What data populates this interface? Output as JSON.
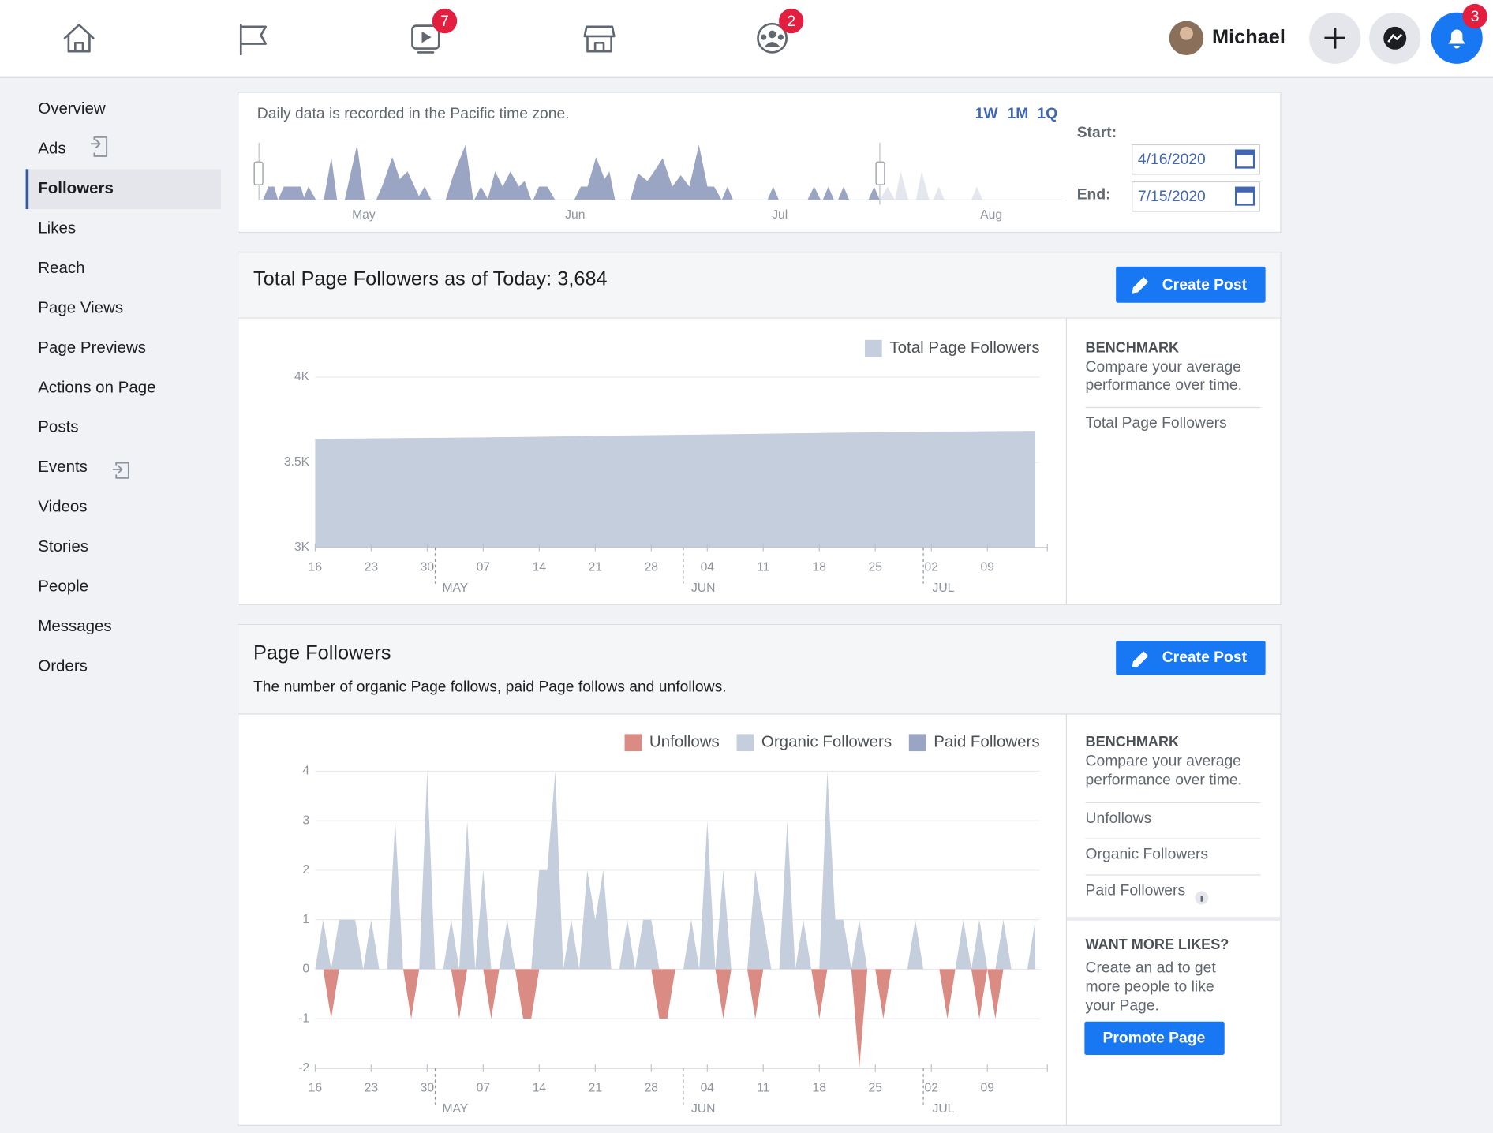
{
  "nav": {
    "user": "Michael",
    "badges": [
      7,
      2,
      3
    ]
  },
  "sidebar": {
    "items": [
      "Overview",
      "Ads",
      "Followers",
      "Likes",
      "Reach",
      "Page Views",
      "Page Previews",
      "Actions on Page",
      "Posts",
      "Events",
      "Videos",
      "Stories",
      "People",
      "Messages",
      "Orders"
    ],
    "selected": 2
  },
  "range": {
    "note": "Daily data is recorded in the Pacific time zone.",
    "periods": [
      "1W",
      "1M",
      "1Q"
    ],
    "start_label": "Start:",
    "start": "4/16/2020",
    "end_label": "End:",
    "end": "7/15/2020",
    "months": [
      "May",
      "Jun",
      "Jul",
      "Aug"
    ]
  },
  "total_panel": {
    "title": "Total Page Followers as of Today: 3,684",
    "button": "Create Post",
    "benchmark": {
      "heading": "BENCHMARK",
      "text": [
        "Compare your average",
        "performance over time."
      ],
      "metrics": [
        "Total Page Followers"
      ]
    },
    "chart": {
      "type": "area",
      "x": [
        0,
        7,
        14,
        21,
        28,
        35,
        42,
        49,
        56,
        63,
        70,
        77,
        84,
        90
      ],
      "series": [
        {
          "name": "Total Page Followers",
          "color": "#c5cedd",
          "values": [
            3637,
            3640,
            3643,
            3646,
            3650,
            3655,
            3659,
            3663,
            3667,
            3672,
            3676,
            3680,
            3682,
            3684
          ]
        }
      ],
      "xlim": [
        0,
        91.5
      ],
      "xticks": [
        {
          "value": 0,
          "label": "16"
        },
        {
          "value": 7,
          "label": "23"
        },
        {
          "value": 14,
          "label": "30"
        },
        {
          "value": 21,
          "label": "07"
        },
        {
          "value": 28,
          "label": "14"
        },
        {
          "value": 35,
          "label": "21"
        },
        {
          "value": 42,
          "label": "28"
        },
        {
          "value": 49,
          "label": "04"
        },
        {
          "value": 56,
          "label": "11"
        },
        {
          "value": 63,
          "label": "18"
        },
        {
          "value": 70,
          "label": "25"
        },
        {
          "value": 77,
          "label": "02"
        },
        {
          "value": 84,
          "label": "09"
        }
      ],
      "months": [
        {
          "value": 15,
          "label": "MAY"
        },
        {
          "value": 46,
          "label": "JUN"
        },
        {
          "value": 76,
          "label": "JUL"
        }
      ],
      "ylim": [
        3000,
        4000
      ],
      "yticks": [
        {
          "value": 3000,
          "label": "3K"
        },
        {
          "value": 3500,
          "label": "3.5K"
        },
        {
          "value": 4000,
          "label": "4K"
        }
      ],
      "grid": true
    }
  },
  "followers_panel": {
    "title": "Page Followers",
    "subtitle": "The number of organic Page follows, paid Page follows and unfollows.",
    "button": "Create Post",
    "benchmark": {
      "heading": "BENCHMARK",
      "text": [
        "Compare your average",
        "performance over time."
      ],
      "metrics": [
        "Unfollows",
        "Organic Followers",
        "Paid Followers"
      ]
    },
    "promo": {
      "heading": "WANT MORE LIKES?",
      "text": [
        "Create an ad to get",
        "more people to like",
        "your Page."
      ],
      "button": "Promote Page"
    },
    "chart": {
      "type": "area",
      "x": [
        0,
        1,
        2,
        3,
        4,
        5,
        6,
        7,
        8,
        9,
        10,
        11,
        12,
        13,
        14,
        15,
        16,
        17,
        18,
        19,
        20,
        21,
        22,
        23,
        24,
        25,
        26,
        27,
        28,
        29,
        30,
        31,
        32,
        33,
        34,
        35,
        36,
        37,
        38,
        39,
        40,
        41,
        42,
        43,
        44,
        45,
        46,
        47,
        48,
        49,
        50,
        51,
        52,
        53,
        54,
        55,
        56,
        57,
        58,
        59,
        60,
        61,
        62,
        63,
        64,
        65,
        66,
        67,
        68,
        69,
        70,
        71,
        72,
        73,
        74,
        75,
        76,
        77,
        78,
        79,
        80,
        81,
        82,
        83,
        84,
        85,
        86,
        87,
        88,
        89,
        90
      ],
      "series": [
        {
          "name": "Unfollows",
          "color": "#d98b84",
          "values": [
            0,
            0,
            -1,
            0,
            0,
            0,
            0,
            0,
            0,
            0,
            0,
            0,
            -1,
            0,
            0,
            0,
            0,
            0,
            -1,
            0,
            0,
            0,
            -1,
            0,
            0,
            0,
            -1,
            -1,
            0,
            0,
            0,
            0,
            0,
            0,
            0,
            0,
            0,
            0,
            0,
            0,
            0,
            0,
            0,
            -1,
            -1,
            0,
            0,
            0,
            0,
            0,
            0,
            -1,
            0,
            0,
            0,
            -1,
            0,
            0,
            0,
            0,
            0,
            0,
            0,
            -1,
            0,
            0,
            0,
            0,
            -2,
            0,
            0,
            -1,
            0,
            0,
            0,
            0,
            0,
            0,
            0,
            -1,
            0,
            0,
            0,
            -1,
            0,
            -1,
            0,
            0,
            0,
            0,
            0
          ]
        },
        {
          "name": "Organic Followers",
          "color": "#c5cedd",
          "values": [
            0,
            1,
            0,
            1,
            1,
            1,
            0,
            1,
            0,
            0,
            3,
            0,
            0,
            0,
            4,
            0,
            0,
            1,
            0,
            3,
            0,
            2,
            0,
            0,
            1,
            0,
            0,
            0,
            2,
            2,
            4,
            0,
            1,
            0,
            2,
            1,
            2,
            0,
            0,
            1,
            0,
            1,
            1,
            0,
            0,
            0,
            0,
            1,
            0,
            3,
            0,
            2,
            0,
            0,
            0,
            2,
            1,
            0,
            0,
            3,
            0,
            1,
            0,
            0,
            4,
            1,
            1,
            0,
            1,
            0,
            0,
            0,
            0,
            0,
            0,
            1,
            0,
            0,
            0,
            0,
            0,
            1,
            0,
            1,
            0,
            0,
            1,
            0,
            0,
            0,
            1
          ]
        },
        {
          "name": "Paid Followers",
          "color": "#9aa5c4",
          "values": [
            0,
            0,
            0,
            0,
            0,
            0,
            0,
            0,
            0,
            0,
            0,
            0,
            0,
            0,
            0,
            0,
            0,
            0,
            0,
            0,
            0,
            0,
            0,
            0,
            0,
            0,
            0,
            0,
            0,
            0,
            0,
            0,
            0,
            0,
            0,
            0,
            0,
            0,
            0,
            0,
            0,
            0,
            0,
            0,
            0,
            0,
            0,
            0,
            0,
            0,
            0,
            0,
            0,
            0,
            0,
            0,
            0,
            0,
            0,
            0,
            0,
            0,
            0,
            0,
            0,
            0,
            0,
            0,
            0,
            0,
            0,
            0,
            0,
            0,
            0,
            0,
            0,
            0,
            0,
            0,
            0,
            0,
            0,
            0,
            0,
            0,
            0,
            0,
            0,
            0,
            0
          ]
        }
      ],
      "xlim": [
        0,
        91.5
      ],
      "xticks": [
        {
          "value": 0,
          "label": "16"
        },
        {
          "value": 7,
          "label": "23"
        },
        {
          "value": 14,
          "label": "30"
        },
        {
          "value": 21,
          "label": "07"
        },
        {
          "value": 28,
          "label": "14"
        },
        {
          "value": 35,
          "label": "21"
        },
        {
          "value": 42,
          "label": "28"
        },
        {
          "value": 49,
          "label": "04"
        },
        {
          "value": 56,
          "label": "11"
        },
        {
          "value": 63,
          "label": "18"
        },
        {
          "value": 70,
          "label": "25"
        },
        {
          "value": 77,
          "label": "02"
        },
        {
          "value": 84,
          "label": "09"
        }
      ],
      "months": [
        {
          "value": 15,
          "label": "MAY"
        },
        {
          "value": 46,
          "label": "JUN"
        },
        {
          "value": 76,
          "label": "JUL"
        }
      ],
      "ylim": [
        -2,
        4
      ],
      "yticks": [
        -2,
        -1,
        0,
        1,
        2,
        3,
        4
      ],
      "grid": true
    }
  }
}
